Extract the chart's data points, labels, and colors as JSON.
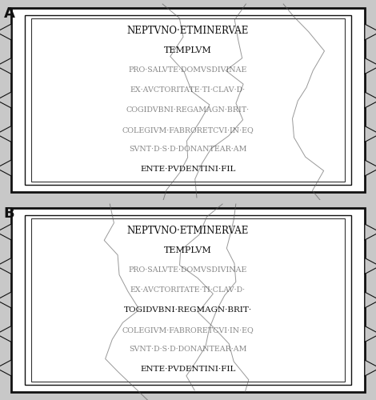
{
  "fig_width": 4.7,
  "fig_height": 5.0,
  "dpi": 100,
  "bg_color": "#c8c8c8",
  "panel_bg_color": "#ffffff",
  "outer_bg_color": "#c8c8c8",
  "panels": [
    {
      "label": "A",
      "lines": [
        "NEPTVNO·ETMINERVAE",
        "TEMPLVM",
        "PRO·SALVTE·DOMVSDIVINAE",
        "EX·AVCTORITATE·TI·CLAV·D·",
        "COGIDVBNI·REGAMAGN·BRIT·",
        "COLEGIVM·FABRORETCVI·IN·EQ",
        "SVNT·D·S·D·DONANTEAR·AM",
        "ENTE·PVDENTINI·FIL"
      ],
      "line_styles": [
        "solid",
        "solid",
        "dotted",
        "dotted",
        "dotted",
        "dotted",
        "dotted",
        "solid"
      ]
    },
    {
      "label": "B",
      "lines": [
        "NEPTVNO·ETMINERVAE",
        "TEMPLVM",
        "PRO·SALVTE·DOMVSDIVINAE",
        "EX·AVCTORITATE·TI·CLAV·D·",
        "TOGIDVBNI·REGMAGN·BRIT·",
        "COLEGIVM·FABRORETCVI·IN·EQ",
        "SVNT·D·S·D·DONANTEAR·AM",
        "ENTE·PVDENTINI·FIL"
      ],
      "line_styles": [
        "solid",
        "solid",
        "dotted",
        "dotted",
        "solid",
        "dotted",
        "dotted",
        "solid"
      ]
    }
  ],
  "zigzag_teeth": 5,
  "n_crack_lines": 3
}
